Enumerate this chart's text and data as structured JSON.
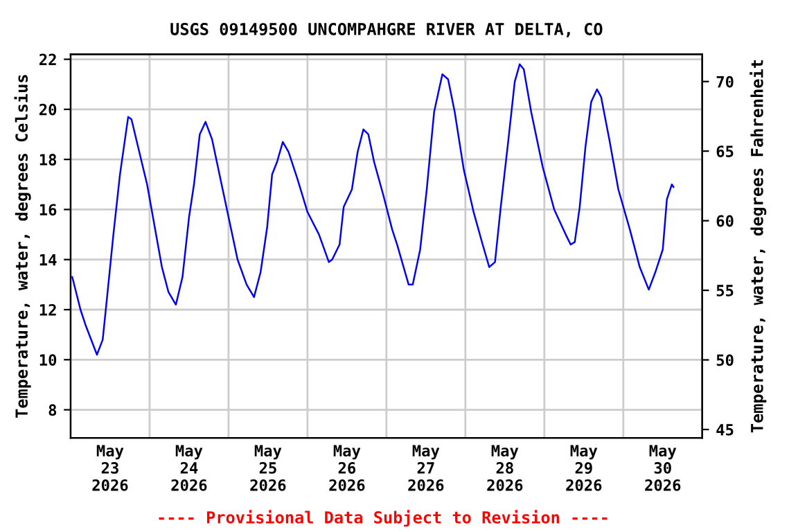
{
  "chart_data": {
    "type": "line",
    "title": "USGS 09149500 UNCOMPAHGRE RIVER AT DELTA, CO",
    "ylabel": "Temperature, water, degrees Celsius",
    "y2label": "Temperature, water, degrees Fahrenheit",
    "annotations": [
      "---- Provisional Data Subject to Revision ----"
    ],
    "xlim": [
      "2026-05-23T00:00",
      "2026-05-31T00:00"
    ],
    "xticks": [
      {
        "value": "2026-05-23T00:00",
        "label": null
      },
      {
        "value": "2026-05-23T12:00",
        "label": "May\n23\n2026"
      },
      {
        "value": "2026-05-24T00:00",
        "label": null
      },
      {
        "value": "2026-05-24T12:00",
        "label": "May\n24\n2026"
      },
      {
        "value": "2026-05-25T00:00",
        "label": null
      },
      {
        "value": "2026-05-25T12:00",
        "label": "May\n25\n2026"
      },
      {
        "value": "2026-05-26T00:00",
        "label": null
      },
      {
        "value": "2026-05-26T12:00",
        "label": "May\n26\n2026"
      },
      {
        "value": "2026-05-27T00:00",
        "label": null
      },
      {
        "value": "2026-05-27T12:00",
        "label": "May\n27\n2026"
      },
      {
        "value": "2026-05-28T00:00",
        "label": null
      },
      {
        "value": "2026-05-28T12:00",
        "label": "May\n28\n2026"
      },
      {
        "value": "2026-05-29T00:00",
        "label": null
      },
      {
        "value": "2026-05-29T12:00",
        "label": "May\n29\n2026"
      },
      {
        "value": "2026-05-30T00:00",
        "label": null
      },
      {
        "value": "2026-05-30T12:00",
        "label": "May\n30\n2026"
      },
      {
        "value": "2026-05-31T00:00",
        "label": null
      }
    ],
    "ylim": [
      6.88,
      22.2
    ],
    "yticks": [
      8,
      10,
      12,
      14,
      16,
      18,
      20,
      22
    ],
    "y2lim": [
      44.4,
      71.96
    ],
    "y2ticks": [
      45,
      50,
      55,
      60,
      65,
      70
    ],
    "grid": true,
    "line_style": "solid",
    "series": [
      {
        "color": "#0000ff",
        "x": [
          "2026-05-23T00:30",
          "2026-05-23T03:00",
          "2026-05-23T04:30",
          "2026-05-23T08:00",
          "2026-05-23T09:45",
          "2026-05-23T11:00",
          "2026-05-23T13:00",
          "2026-05-23T15:00",
          "2026-05-23T17:30",
          "2026-05-23T18:30",
          "2026-05-23T20:30",
          "2026-05-23T23:15",
          "2026-05-24T00:45",
          "2026-05-24T03:45",
          "2026-05-24T05:45",
          "2026-05-24T08:00",
          "2026-05-24T10:00",
          "2026-05-24T12:00",
          "2026-05-24T13:30",
          "2026-05-24T15:15",
          "2026-05-24T17:00",
          "2026-05-24T19:00",
          "2026-05-24T21:15",
          "2026-05-25T00:00",
          "2026-05-25T02:45",
          "2026-05-25T05:30",
          "2026-05-25T07:45",
          "2026-05-25T09:45",
          "2026-05-25T11:45",
          "2026-05-25T13:15",
          "2026-05-25T14:45",
          "2026-05-25T16:30",
          "2026-05-25T18:15",
          "2026-05-25T21:00",
          "2026-05-26T00:00",
          "2026-05-26T03:30",
          "2026-05-26T06:30",
          "2026-05-26T07:30",
          "2026-05-26T09:45",
          "2026-05-26T11:00",
          "2026-05-26T13:30",
          "2026-05-26T15:15",
          "2026-05-26T17:00",
          "2026-05-26T18:30",
          "2026-05-26T20:15",
          "2026-05-26T23:00",
          "2026-05-27T01:45",
          "2026-05-27T03:15",
          "2026-05-27T06:45",
          "2026-05-27T08:00",
          "2026-05-27T10:15",
          "2026-05-27T12:15",
          "2026-05-27T14:30",
          "2026-05-27T17:00",
          "2026-05-27T18:45",
          "2026-05-27T20:45",
          "2026-05-27T23:30",
          "2026-05-28T02:30",
          "2026-05-28T05:15",
          "2026-05-28T07:15",
          "2026-05-28T09:00",
          "2026-05-28T10:45",
          "2026-05-28T13:00",
          "2026-05-28T15:00",
          "2026-05-28T16:30",
          "2026-05-28T17:45",
          "2026-05-28T20:00",
          "2026-05-28T23:30",
          "2026-05-29T03:00",
          "2026-05-29T06:30",
          "2026-05-29T08:00",
          "2026-05-29T09:15",
          "2026-05-29T10:45",
          "2026-05-29T12:30",
          "2026-05-29T14:15",
          "2026-05-29T16:00",
          "2026-05-29T17:15",
          "2026-05-29T19:45",
          "2026-05-29T22:30",
          "2026-05-30T02:00",
          "2026-05-30T05:00",
          "2026-05-30T07:45",
          "2026-05-30T09:45",
          "2026-05-30T12:00",
          "2026-05-30T13:15",
          "2026-05-30T14:45",
          "2026-05-30T15:15"
        ],
        "values": [
          13.3,
          12.0,
          11.4,
          10.2,
          10.8,
          12.4,
          15.0,
          17.4,
          19.7,
          19.6,
          18.5,
          17.0,
          15.9,
          13.7,
          12.7,
          12.2,
          13.3,
          15.7,
          17.0,
          19.0,
          19.5,
          18.8,
          17.4,
          15.7,
          14.0,
          13.0,
          12.5,
          13.5,
          15.3,
          17.4,
          17.9,
          18.7,
          18.3,
          17.2,
          15.9,
          15.0,
          13.9,
          14.0,
          14.6,
          16.1,
          16.8,
          18.3,
          19.2,
          19.0,
          17.9,
          16.6,
          15.2,
          14.6,
          13.0,
          13.0,
          14.4,
          16.8,
          19.9,
          21.4,
          21.2,
          19.9,
          17.6,
          15.9,
          14.6,
          13.7,
          13.9,
          16.1,
          18.7,
          21.1,
          21.8,
          21.6,
          19.9,
          17.7,
          16.0,
          15.0,
          14.6,
          14.7,
          16.1,
          18.5,
          20.3,
          20.8,
          20.5,
          18.8,
          16.8,
          15.2,
          13.7,
          12.8,
          13.5,
          14.4,
          16.4,
          17.0,
          16.9
        ]
      }
    ]
  }
}
